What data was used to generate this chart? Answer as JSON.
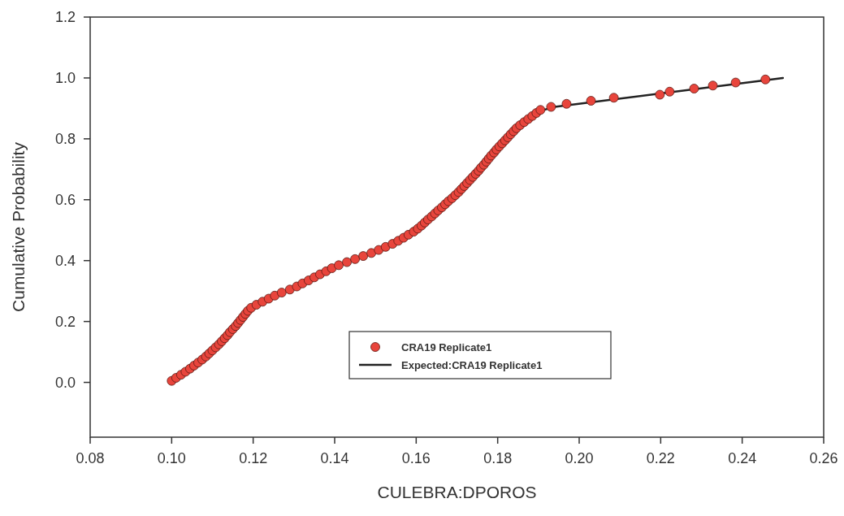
{
  "chart_data": {
    "type": "scatter",
    "xlabel": "CULEBRA:DPOROS",
    "ylabel": "Cumulative Probability",
    "xlim": [
      0.08,
      0.26
    ],
    "xticks": [
      {
        "value": 0.08,
        "label": "0.08"
      },
      {
        "value": 0.1,
        "label": "0.10"
      },
      {
        "value": 0.12,
        "label": "0.12"
      },
      {
        "value": 0.14,
        "label": "0.14"
      },
      {
        "value": 0.16,
        "label": "0.16"
      },
      {
        "value": 0.18,
        "label": "0.18"
      },
      {
        "value": 0.2,
        "label": "0.20"
      },
      {
        "value": 0.22,
        "label": "0.22"
      },
      {
        "value": 0.24,
        "label": "0.24"
      },
      {
        "value": 0.26,
        "label": "0.26"
      }
    ],
    "ylim": [
      -0.18,
      1.2
    ],
    "yticks": [
      {
        "value": 0,
        "label": "0.0"
      },
      {
        "value": 0.2,
        "label": "0.2"
      },
      {
        "value": 0.4,
        "label": "0.4"
      },
      {
        "value": 0.6,
        "label": "0.6"
      },
      {
        "value": 0.8,
        "label": "0.8"
      },
      {
        "value": 1,
        "label": "1.0"
      },
      {
        "value": 1.2,
        "label": "1.2"
      }
    ],
    "grid": false,
    "legend": "bottom",
    "series": [
      {
        "name": "Expected:CRA19 Replicate1",
        "type": "line",
        "color": "#222222",
        "line_style": "solid",
        "x": [
          0.19,
          0.194,
          0.25
        ],
        "values": [
          0.89,
          0.905,
          1.0
        ]
      },
      {
        "name": "CRA19 Replicate1",
        "color": "#e8453c",
        "marker": "circle",
        "x": [
          0.1,
          0.1011,
          0.1023,
          0.1034,
          0.1045,
          0.1055,
          0.1065,
          0.1075,
          0.1084,
          0.1092,
          0.11,
          0.1108,
          0.1116,
          0.1123,
          0.113,
          0.1137,
          0.1143,
          0.115,
          0.1157,
          0.1163,
          0.1169,
          0.1175,
          0.1181,
          0.1187,
          0.1195,
          0.1208,
          0.1223,
          0.1238,
          0.1253,
          0.127,
          0.129,
          0.1307,
          0.1321,
          0.1336,
          0.135,
          0.1364,
          0.1379,
          0.1393,
          0.141,
          0.143,
          0.145,
          0.147,
          0.149,
          0.1508,
          0.1525,
          0.1542,
          0.1556,
          0.1569,
          0.1581,
          0.1594,
          0.1604,
          0.1613,
          0.1621,
          0.1629,
          0.1638,
          0.1646,
          0.1654,
          0.1663,
          0.1671,
          0.1679,
          0.1688,
          0.1696,
          0.1704,
          0.1711,
          0.1718,
          0.1725,
          0.1732,
          0.1739,
          0.1746,
          0.1753,
          0.1759,
          0.1766,
          0.1772,
          0.1778,
          0.1784,
          0.1791,
          0.1797,
          0.1804,
          0.1811,
          0.1818,
          0.1825,
          0.1832,
          0.1839,
          0.1846,
          0.1855,
          0.1865,
          0.1875,
          0.1885,
          0.1895,
          0.1905,
          0.1931,
          0.1969,
          0.2029,
          0.2085,
          0.2198,
          0.2222,
          0.2282,
          0.2328,
          0.2384,
          0.2457
        ],
        "values": [
          0.005,
          0.015,
          0.025,
          0.035,
          0.045,
          0.055,
          0.065,
          0.075,
          0.085,
          0.095,
          0.105,
          0.115,
          0.125,
          0.135,
          0.145,
          0.155,
          0.165,
          0.175,
          0.185,
          0.195,
          0.205,
          0.215,
          0.225,
          0.235,
          0.245,
          0.255,
          0.265,
          0.275,
          0.285,
          0.295,
          0.305,
          0.315,
          0.325,
          0.335,
          0.345,
          0.355,
          0.365,
          0.375,
          0.385,
          0.395,
          0.405,
          0.415,
          0.425,
          0.435,
          0.445,
          0.455,
          0.465,
          0.475,
          0.485,
          0.495,
          0.505,
          0.515,
          0.525,
          0.535,
          0.545,
          0.555,
          0.565,
          0.575,
          0.585,
          0.595,
          0.605,
          0.615,
          0.625,
          0.635,
          0.645,
          0.655,
          0.665,
          0.675,
          0.685,
          0.695,
          0.705,
          0.715,
          0.725,
          0.735,
          0.745,
          0.755,
          0.765,
          0.775,
          0.785,
          0.795,
          0.805,
          0.815,
          0.825,
          0.835,
          0.845,
          0.855,
          0.865,
          0.875,
          0.885,
          0.895,
          0.905,
          0.915,
          0.925,
          0.935,
          0.945,
          0.955,
          0.965,
          0.975,
          0.985,
          0.995
        ]
      }
    ]
  }
}
